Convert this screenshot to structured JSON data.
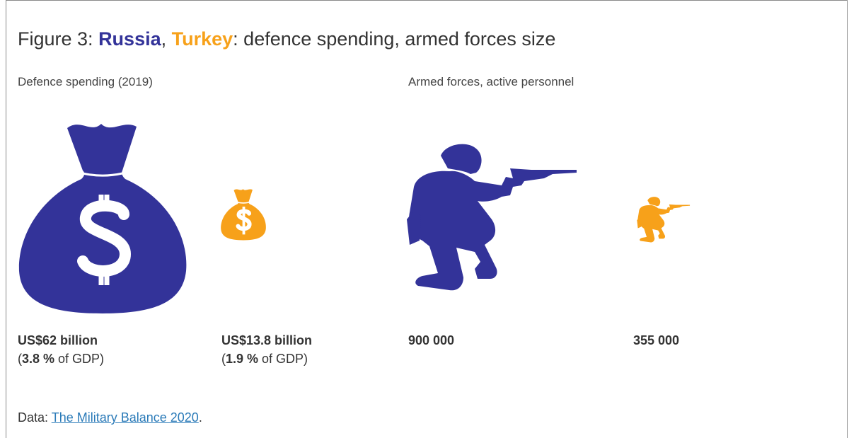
{
  "title": {
    "prefix": "Figure 3: ",
    "country1": "Russia",
    "separator": ", ",
    "country2": "Turkey",
    "suffix": ": defence spending, armed forces size"
  },
  "colors": {
    "russia": "#333399",
    "turkey": "#f7a11a"
  },
  "panels": {
    "spending_label": "Defence spending (2019)",
    "forces_label": "Armed forces, active personnel"
  },
  "icons": {
    "spending": "money-bag-icon",
    "forces": "kneeling-soldier-icon"
  },
  "chart_data": [
    {
      "type": "bar",
      "title": "Defence spending (2019)",
      "categories": [
        "Russia",
        "Turkey"
      ],
      "values": [
        62,
        13.8
      ],
      "labels": [
        "US$62 billion",
        "US$13.8 billion"
      ],
      "gdp_share_percent": [
        3.8,
        1.9
      ],
      "gdp_labels": [
        {
          "open": "(",
          "value": "3.8 %",
          "rest": " of GDP)"
        },
        {
          "open": "(",
          "value": "1.9 %",
          "rest": " of GDP)"
        }
      ]
    },
    {
      "type": "bar",
      "title": "Armed forces, active personnel",
      "categories": [
        "Russia",
        "Turkey"
      ],
      "values": [
        900000,
        355000
      ],
      "labels": [
        "900 000",
        "355 000"
      ]
    }
  ],
  "source": {
    "prefix": "Data: ",
    "link_text": "The Military Balance 2020",
    "suffix": "."
  }
}
